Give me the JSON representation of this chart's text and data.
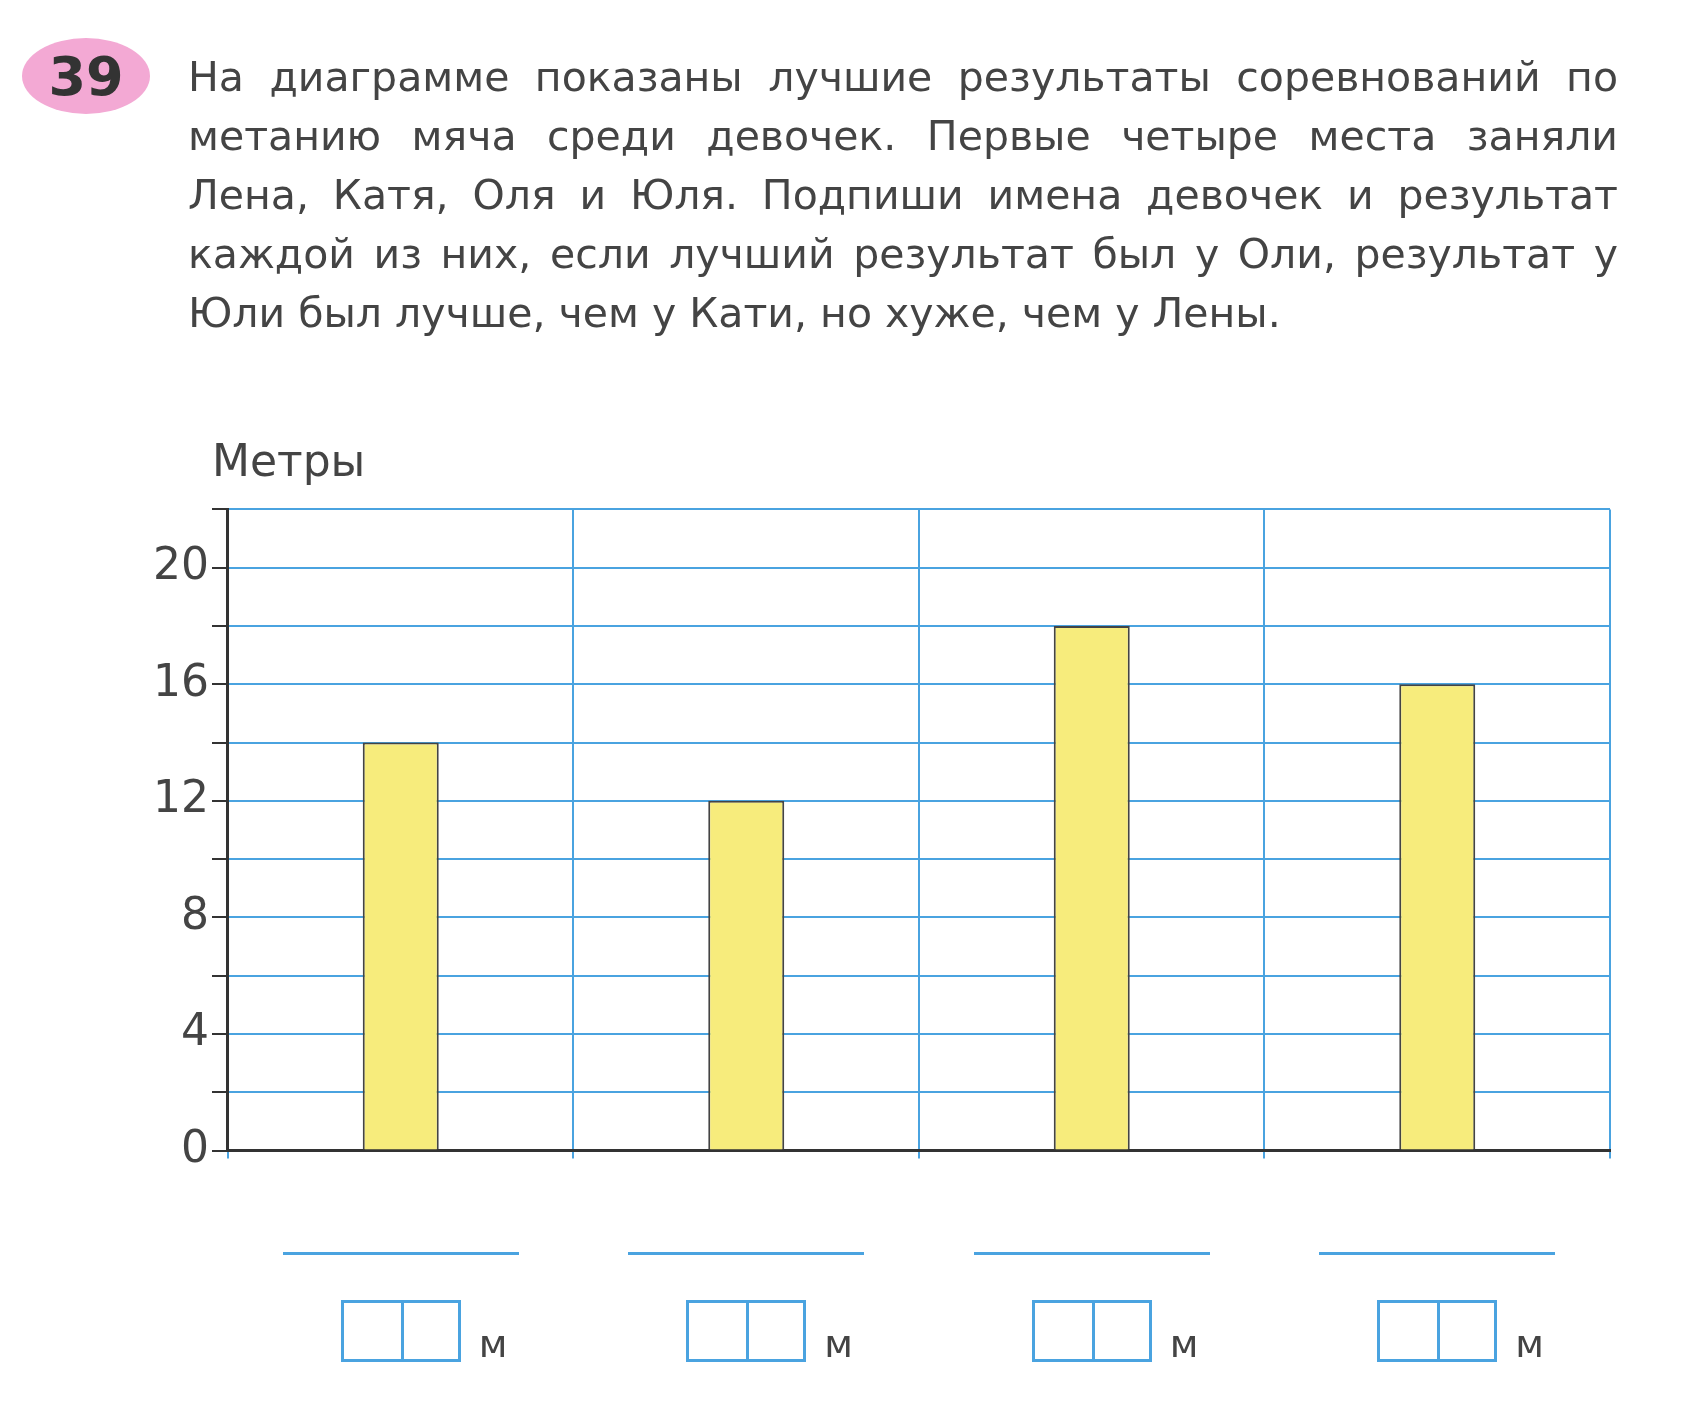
{
  "chart_data": {
    "type": "bar",
    "title": "На диаграмме показаны лучшие результаты соревнований по метанию мяча среди девочек. Первые четыре места заняли Лена, Катя, Оля и Юля. Подпиши имена девочек и результат каждой из них, если лучший результат был у Оли, результат у Юли был лучше, чем у Кати, но хуже, чем у Лены.",
    "ylabel": "Метры",
    "annotations": [
      "39",
      "м",
      "м",
      "м",
      "м"
    ],
    "categories": [
      null,
      null,
      null,
      null
    ],
    "values": [
      14,
      12,
      18,
      16
    ],
    "color": "#f7ec7c",
    "ylim": [
      0,
      22
    ],
    "yticks": [
      0,
      {
        "value": 2,
        "label": null
      },
      4,
      {
        "value": 6,
        "label": null
      },
      8,
      {
        "value": 10,
        "label": null
      },
      12,
      {
        "value": 14,
        "label": null
      },
      16,
      {
        "value": 18,
        "label": null
      },
      20,
      {
        "value": 22,
        "label": null
      }
    ],
    "grid": true,
    "legend": false
  }
}
